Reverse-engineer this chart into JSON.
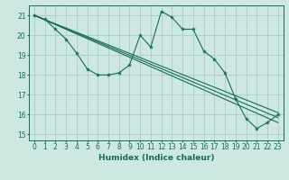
{
  "title": "",
  "xlabel": "Humidex (Indice chaleur)",
  "bg_color": "#cce8e0",
  "grid_color": "#aacccc",
  "line_color": "#1a6b5a",
  "xlim": [
    -0.5,
    23.5
  ],
  "ylim": [
    14.7,
    21.5
  ],
  "yticks": [
    15,
    16,
    17,
    18,
    19,
    20,
    21
  ],
  "xticks": [
    0,
    1,
    2,
    3,
    4,
    5,
    6,
    7,
    8,
    9,
    10,
    11,
    12,
    13,
    14,
    15,
    16,
    17,
    18,
    19,
    20,
    21,
    22,
    23
  ],
  "y_main": [
    21.0,
    20.8,
    20.3,
    19.8,
    19.1,
    18.3,
    18.0,
    18.0,
    18.1,
    18.5,
    20.0,
    19.4,
    21.2,
    20.9,
    20.3,
    20.3,
    19.2,
    18.8,
    18.1,
    16.8,
    15.8,
    15.3,
    15.6,
    16.0
  ],
  "regression_lines": [
    {
      "start_y": 21.0,
      "end_y": 16.1
    },
    {
      "start_y": 21.0,
      "end_y": 15.85
    },
    {
      "start_y": 21.0,
      "end_y": 15.6
    }
  ],
  "tick_fontsize": 5.5,
  "xlabel_fontsize": 6.5
}
